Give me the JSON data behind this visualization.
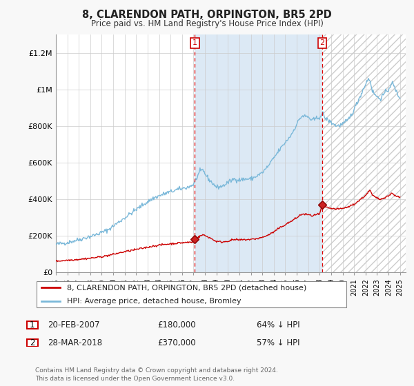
{
  "title": "8, CLARENDON PATH, ORPINGTON, BR5 2PD",
  "subtitle": "Price paid vs. HM Land Registry's House Price Index (HPI)",
  "hpi_color": "#7ab8d9",
  "property_color": "#cc0000",
  "background_color": "#f8f8f8",
  "plot_bg_color": "#ffffff",
  "shaded_region_color": "#dce9f5",
  "grid_color": "#cccccc",
  "ylim": [
    0,
    1300000
  ],
  "yticks": [
    0,
    200000,
    400000,
    600000,
    800000,
    1000000,
    1200000
  ],
  "ytick_labels": [
    "£0",
    "£200K",
    "£400K",
    "£600K",
    "£800K",
    "£1M",
    "£1.2M"
  ],
  "x_start_year": 1995,
  "x_end_year": 2025,
  "purchase1_year": 2007.12,
  "purchase1_price": 180000,
  "purchase2_year": 2018.23,
  "purchase2_price": 370000,
  "legend_line1": "8, CLARENDON PATH, ORPINGTON, BR5 2PD (detached house)",
  "legend_line2": "HPI: Average price, detached house, Bromley",
  "annotation1_date": "20-FEB-2007",
  "annotation1_price": "£180,000",
  "annotation1_hpi": "64% ↓ HPI",
  "annotation2_date": "28-MAR-2018",
  "annotation2_price": "£370,000",
  "annotation2_hpi": "57% ↓ HPI",
  "footer": "Contains HM Land Registry data © Crown copyright and database right 2024.\nThis data is licensed under the Open Government Licence v3.0."
}
